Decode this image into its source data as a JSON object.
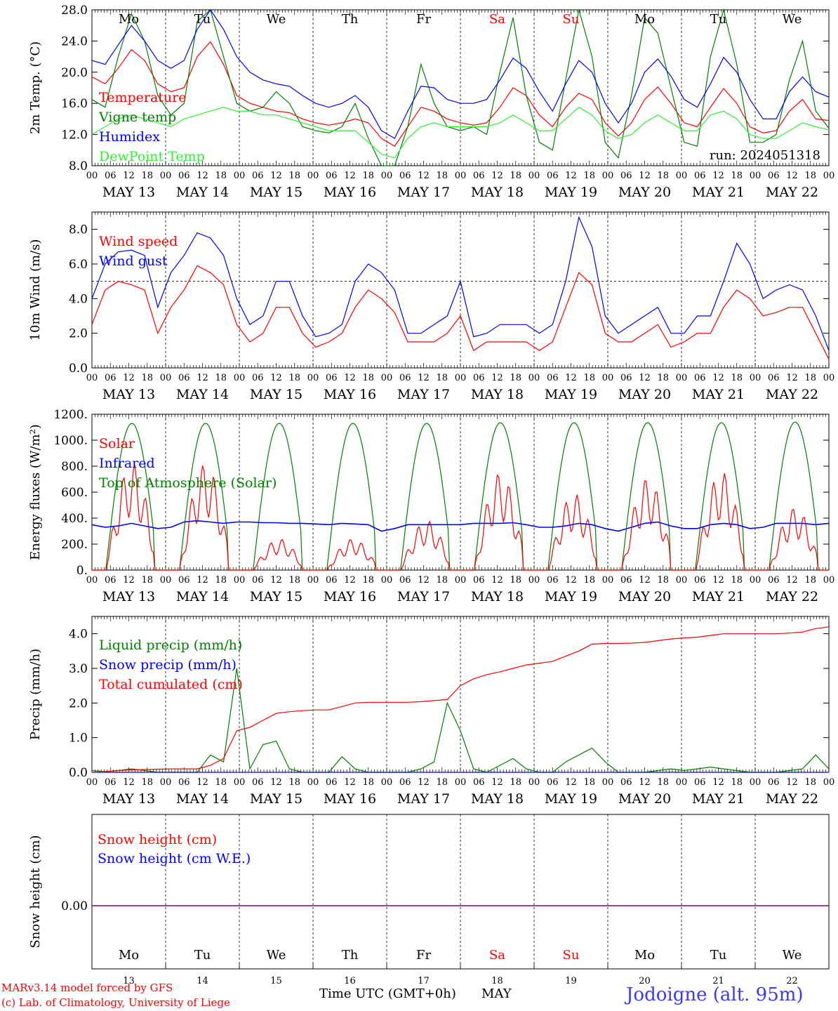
{
  "run_label": "run: 2024051318",
  "station": "Jodoigne (alt. 95m)",
  "footer": {
    "credit_line1": "MARv3.14 model forced by GFS",
    "credit_line2": "(c) Lab. of Climatology, University of Liege",
    "time_axis": "Time UTC (GMT+0h)",
    "month": "MAY"
  },
  "colors": {
    "red": "#ff0000",
    "green": "#008000",
    "blue": "#0000ff",
    "lightgreen": "#33ee33",
    "purple": "#800080",
    "weekend": "#ff0000"
  },
  "chart_data": [
    {
      "id": "temp",
      "type": "line",
      "ylabel": "2m Temp. (°C)",
      "ylim": [
        8,
        28
      ],
      "yticks": [
        "8.0",
        "12.0",
        "16.0",
        "20.0",
        "24.0",
        "28.0"
      ],
      "x_start": "2024-05-13 00:00",
      "x_step_hours": 6,
      "x_tick_labels": [
        "00",
        "06",
        "12",
        "18"
      ],
      "day_labels": [
        "MAY 13",
        "MAY 14",
        "MAY 15",
        "MAY 16",
        "MAY 17",
        "MAY 18",
        "MAY 19",
        "MAY 20",
        "MAY 21",
        "MAY 22"
      ],
      "weekday_labels": [
        "Mo",
        "Tu",
        "We",
        "Th",
        "Fr",
        "Sa",
        "Su",
        "Mo",
        "Tu",
        "We"
      ],
      "series": [
        {
          "name": "Temperature",
          "color": "#ff0000",
          "values": [
            19.4,
            18.5,
            20.5,
            22.9,
            21.5,
            18.5,
            17.5,
            18.0,
            22.0,
            23.9,
            21.0,
            17.0,
            16.0,
            15.5,
            15.0,
            14.8,
            14.0,
            13.5,
            13.2,
            13.5,
            14.0,
            13.5,
            11.5,
            10.5,
            13.0,
            15.5,
            15.0,
            14.0,
            13.5,
            13.2,
            13.5,
            15.5,
            18.0,
            17.0,
            14.5,
            13.0,
            15.5,
            17.3,
            16.5,
            13.5,
            11.8,
            13.5,
            16.5,
            18.1,
            16.0,
            13.5,
            13.0,
            15.5,
            17.9,
            16.0,
            13.0,
            12.2,
            12.5,
            15.0,
            16.5,
            14.0,
            13.8
          ]
        },
        {
          "name": "Vigne temp",
          "color": "#008000",
          "values": [
            16.5,
            15.5,
            22.0,
            27.5,
            24.0,
            17.0,
            14.5,
            16.0,
            26.5,
            30.0,
            22.0,
            16.0,
            15.0,
            15.5,
            17.5,
            16.0,
            13.0,
            12.5,
            12.2,
            13.0,
            16.0,
            11.5,
            7.5,
            8.0,
            13.0,
            21.0,
            16.0,
            13.0,
            12.5,
            13.0,
            12.0,
            20.0,
            27.0,
            17.0,
            11.0,
            10.0,
            19.0,
            28.5,
            22.0,
            11.0,
            9.0,
            17.0,
            27.0,
            25.0,
            18.0,
            11.0,
            10.5,
            22.0,
            29.0,
            21.0,
            11.0,
            11.0,
            12.0,
            19.0,
            24.0,
            15.0,
            12.8
          ]
        },
        {
          "name": "Humidex",
          "color": "#0000ff",
          "values": [
            21.5,
            21.0,
            23.5,
            26.0,
            24.0,
            21.5,
            20.5,
            21.5,
            25.5,
            28.0,
            25.5,
            22.0,
            20.0,
            19.0,
            18.5,
            18.2,
            17.0,
            16.0,
            15.5,
            16.0,
            17.0,
            15.5,
            12.5,
            11.5,
            15.0,
            18.2,
            18.0,
            16.5,
            16.0,
            16.0,
            16.5,
            19.0,
            21.8,
            20.5,
            17.5,
            15.0,
            18.5,
            21.5,
            20.0,
            16.0,
            13.5,
            16.0,
            20.0,
            21.7,
            19.5,
            16.5,
            15.5,
            18.5,
            21.9,
            20.0,
            16.5,
            14.0,
            14.0,
            17.5,
            19.4,
            17.5,
            16.8
          ]
        },
        {
          "name": "DewPoint Temp",
          "color": "#33ee33",
          "values": [
            12.0,
            13.0,
            14.0,
            14.5,
            14.0,
            13.5,
            13.0,
            14.0,
            14.5,
            15.0,
            15.5,
            15.0,
            15.0,
            14.5,
            14.5,
            14.0,
            13.5,
            13.0,
            12.5,
            12.5,
            12.5,
            11.0,
            9.5,
            9.0,
            11.5,
            13.0,
            13.5,
            13.0,
            13.0,
            13.0,
            13.0,
            13.5,
            14.5,
            13.5,
            12.5,
            12.5,
            14.0,
            15.5,
            14.5,
            12.5,
            11.5,
            12.0,
            13.5,
            14.5,
            13.5,
            12.5,
            12.5,
            14.5,
            15.0,
            14.0,
            12.0,
            11.5,
            11.5,
            12.5,
            13.5,
            13.0,
            12.6
          ]
        }
      ]
    },
    {
      "id": "wind",
      "type": "line",
      "ylabel": "10m Wind (m/s)",
      "ylim": [
        0,
        9
      ],
      "yticks": [
        "0.0",
        "2.0",
        "4.0",
        "6.0",
        "8.0"
      ],
      "reference_line": 5,
      "day_labels": [
        "MAY 13",
        "MAY 14",
        "MAY 15",
        "MAY 16",
        "MAY 17",
        "MAY 18",
        "MAY 19",
        "MAY 20",
        "MAY 21",
        "MAY 22"
      ],
      "series": [
        {
          "name": "Wind speed",
          "color": "#ff0000",
          "values": [
            2.5,
            4.5,
            5.0,
            4.8,
            4.5,
            2.0,
            3.5,
            4.5,
            5.9,
            5.5,
            4.8,
            2.5,
            1.5,
            2.0,
            3.5,
            3.5,
            2.0,
            1.2,
            1.5,
            2.0,
            3.5,
            4.5,
            4.0,
            3.2,
            1.5,
            1.5,
            1.5,
            2.0,
            3.0,
            1.0,
            1.5,
            1.5,
            1.5,
            1.5,
            1.0,
            1.5,
            3.5,
            5.5,
            4.8,
            2.0,
            1.5,
            1.5,
            2.0,
            2.5,
            1.2,
            1.5,
            2.0,
            2.0,
            3.5,
            4.5,
            4.0,
            3.0,
            3.2,
            3.5,
            3.5,
            2.0,
            0.5
          ]
        },
        {
          "name": "Wind gust",
          "color": "#0000ff",
          "values": [
            4.0,
            6.0,
            6.7,
            6.8,
            6.5,
            3.5,
            5.5,
            6.5,
            7.8,
            7.5,
            6.5,
            4.0,
            2.5,
            3.0,
            5.0,
            5.0,
            3.0,
            1.8,
            2.0,
            2.5,
            5.0,
            6.0,
            5.5,
            4.5,
            2.0,
            2.0,
            2.5,
            3.0,
            5.0,
            1.8,
            2.0,
            2.5,
            2.5,
            2.5,
            2.0,
            2.5,
            5.0,
            8.7,
            7.0,
            3.0,
            2.0,
            2.5,
            3.0,
            3.5,
            2.0,
            2.0,
            3.0,
            3.0,
            5.0,
            7.2,
            6.0,
            4.0,
            4.5,
            4.8,
            4.5,
            3.0,
            1.0
          ]
        }
      ]
    },
    {
      "id": "energy",
      "type": "line",
      "ylabel": "Energy fluxes (W/m²)",
      "ylim": [
        0,
        1200
      ],
      "yticks": [
        "0.",
        "200.",
        "400.",
        "600.",
        "800.",
        "1000.",
        "1200."
      ],
      "day_labels": [
        "MAY 13",
        "MAY 14",
        "MAY 15",
        "MAY 16",
        "MAY 17",
        "MAY 18",
        "MAY 19",
        "MAY 20",
        "MAY 21",
        "MAY 22"
      ],
      "series": [
        {
          "name": "Solar",
          "color": "#ff0000",
          "daily_peak": [
            820,
            820,
            240,
            240,
            380,
            750,
            590,
            710,
            760,
            480
          ]
        },
        {
          "name": "Infrared",
          "color": "#0000ff",
          "values": [
            350,
            330,
            340,
            360,
            340,
            320,
            330,
            370,
            380,
            370,
            360,
            370,
            370,
            365,
            365,
            360,
            360,
            355,
            350,
            360,
            355,
            350,
            300,
            320,
            350,
            350,
            350,
            350,
            350,
            360,
            360,
            360,
            365,
            350,
            330,
            330,
            340,
            360,
            350,
            320,
            300,
            330,
            360,
            370,
            340,
            320,
            320,
            350,
            360,
            350,
            320,
            330,
            360,
            360,
            360,
            350,
            360
          ]
        },
        {
          "name": "Top of Atmosphere (Solar)",
          "color": "#008000",
          "daily_peak": [
            1130,
            1130,
            1130,
            1130,
            1130,
            1135,
            1135,
            1135,
            1135,
            1140
          ]
        }
      ]
    },
    {
      "id": "precip",
      "type": "line",
      "ylabel": "Precip (mm/h)",
      "ylim": [
        0,
        4.5
      ],
      "yticks": [
        "0.0",
        "1.0",
        "2.0",
        "3.0",
        "4.0"
      ],
      "day_labels": [
        "MAY 13",
        "MAY 14",
        "MAY 15",
        "MAY 16",
        "MAY 17",
        "MAY 18",
        "MAY 19",
        "MAY 20",
        "MAY 21",
        "MAY 22"
      ],
      "series": [
        {
          "name": "Liquid precip (mm/h)",
          "color": "#008000",
          "values": [
            0.05,
            0.02,
            0.05,
            0.1,
            0.05,
            0.0,
            0.0,
            0.0,
            0.0,
            0.5,
            0.3,
            3.0,
            0.1,
            0.8,
            0.9,
            0.1,
            0.0,
            0.0,
            0.0,
            0.45,
            0.1,
            0.0,
            0.0,
            0.0,
            0.0,
            0.1,
            0.3,
            2.0,
            1.2,
            0.1,
            0.0,
            0.2,
            0.4,
            0.1,
            0.0,
            0.0,
            0.3,
            0.5,
            0.7,
            0.3,
            0.0,
            0.0,
            0.0,
            0.05,
            0.1,
            0.05,
            0.1,
            0.15,
            0.1,
            0.05,
            0.0,
            0.0,
            0.0,
            0.05,
            0.1,
            0.5,
            0.1
          ]
        },
        {
          "name": "Snow precip (mm/h)",
          "color": "#0000ff",
          "values": [
            0,
            0,
            0,
            0,
            0,
            0,
            0,
            0,
            0,
            0,
            0,
            0,
            0,
            0,
            0,
            0,
            0,
            0,
            0,
            0,
            0,
            0,
            0,
            0,
            0,
            0,
            0,
            0,
            0,
            0,
            0,
            0,
            0,
            0,
            0,
            0,
            0,
            0,
            0,
            0,
            0,
            0,
            0,
            0,
            0,
            0,
            0,
            0,
            0,
            0,
            0,
            0,
            0,
            0,
            0,
            0,
            0
          ]
        },
        {
          "name": "Total cumulated (cm)",
          "color": "#ff0000",
          "values": [
            0.0,
            0.02,
            0.05,
            0.07,
            0.08,
            0.09,
            0.1,
            0.1,
            0.1,
            0.2,
            0.4,
            1.2,
            1.3,
            1.5,
            1.7,
            1.75,
            1.78,
            1.8,
            1.8,
            1.9,
            2.0,
            2.02,
            2.02,
            2.02,
            2.02,
            2.04,
            2.07,
            2.1,
            2.5,
            2.7,
            2.82,
            2.9,
            3.0,
            3.1,
            3.15,
            3.2,
            3.35,
            3.5,
            3.7,
            3.72,
            3.72,
            3.73,
            3.75,
            3.8,
            3.85,
            3.88,
            3.9,
            3.95,
            4.0,
            4.0,
            4.0,
            4.0,
            4.0,
            4.02,
            4.05,
            4.15,
            4.2
          ]
        }
      ]
    },
    {
      "id": "snow",
      "type": "line",
      "ylabel": "Snow height (cm)",
      "yticks": [
        "0.00"
      ],
      "series": [
        {
          "name": "Snow height (cm)",
          "color": "#ff0000",
          "values": [
            0,
            0
          ]
        },
        {
          "name": "Snow height (cm W.E.)",
          "color": "#0000ff",
          "values": [
            0,
            0
          ]
        }
      ],
      "weekday_labels": [
        "Mo",
        "Tu",
        "We",
        "Th",
        "Fr",
        "Sa",
        "Su",
        "Mo",
        "Tu",
        "We"
      ],
      "day_numbers": [
        "13",
        "14",
        "15",
        "16",
        "17",
        "18",
        "19",
        "20",
        "21",
        "22"
      ]
    }
  ]
}
